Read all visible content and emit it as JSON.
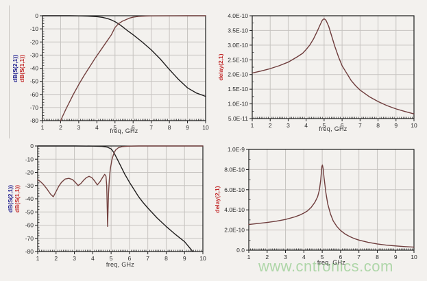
{
  "background": "#f3f1ee",
  "watermark": {
    "text": "www.cntronics.com",
    "color": "#abd5a5"
  },
  "colors": {
    "s21_trace": "#1f1d1d",
    "s11_trace": "#73413f",
    "delay_trace": "#6e3c3c",
    "grid": "#c6c3c0",
    "axis": "#1a1a1a",
    "label_blue": "#1a1a8c",
    "label_red": "#c22a2a"
  },
  "chart_data": [
    {
      "type": "line",
      "position": "top-left",
      "xlabel": "freq, GHz",
      "y_axis_titles": [
        {
          "text": "dB(S(2,1))",
          "color": "#1a1a8c"
        },
        {
          "text": "dB(S(1,1))",
          "color": "#c22a2a"
        }
      ],
      "xlim": [
        1,
        10
      ],
      "ylim": [
        -80,
        0
      ],
      "xticks": [
        [
          1,
          "1"
        ],
        [
          2,
          "2"
        ],
        [
          3,
          "3"
        ],
        [
          4,
          "4"
        ],
        [
          5,
          "5"
        ],
        [
          6,
          "6"
        ],
        [
          7,
          "7"
        ],
        [
          8,
          "8"
        ],
        [
          9,
          "9"
        ],
        [
          10,
          "10"
        ]
      ],
      "yticks": [
        [
          0,
          "0"
        ],
        [
          -10,
          "-10"
        ],
        [
          -20,
          "-20"
        ],
        [
          -30,
          "-30"
        ],
        [
          -40,
          "-40"
        ],
        [
          -50,
          "-50"
        ],
        [
          -60,
          "-60"
        ],
        [
          -70,
          "-70"
        ],
        [
          -80,
          "-80"
        ]
      ],
      "yminor": 2,
      "grid": true,
      "series": [
        {
          "name": "dB(S(2,1))",
          "color": "#1f1d1d",
          "points": [
            [
              1,
              0
            ],
            [
              1.5,
              0
            ],
            [
              2,
              0
            ],
            [
              2.5,
              0
            ],
            [
              3,
              -0.1
            ],
            [
              3.5,
              -0.3
            ],
            [
              4,
              -0.7
            ],
            [
              4.3,
              -1.2
            ],
            [
              4.6,
              -2.2
            ],
            [
              4.8,
              -3.2
            ],
            [
              5,
              -4.5
            ],
            [
              5.2,
              -6.2
            ],
            [
              5.4,
              -8.2
            ],
            [
              5.7,
              -11.5
            ],
            [
              6,
              -14.5
            ],
            [
              6.5,
              -20
            ],
            [
              7,
              -26
            ],
            [
              7.5,
              -33
            ],
            [
              8,
              -41
            ],
            [
              8.5,
              -48.5
            ],
            [
              9,
              -55
            ],
            [
              9.5,
              -59
            ],
            [
              10,
              -61.5
            ]
          ]
        },
        {
          "name": "dB(S(1,1))",
          "color": "#73413f",
          "points": [
            [
              2,
              -80
            ],
            [
              2.1,
              -77
            ],
            [
              2.3,
              -71
            ],
            [
              2.5,
              -65.5
            ],
            [
              2.7,
              -60
            ],
            [
              3,
              -52.5
            ],
            [
              3.3,
              -45.5
            ],
            [
              3.6,
              -39
            ],
            [
              3.9,
              -32.5
            ],
            [
              4.2,
              -26.5
            ],
            [
              4.5,
              -20.5
            ],
            [
              4.8,
              -14.5
            ],
            [
              5,
              -9
            ],
            [
              5.2,
              -6
            ],
            [
              5.4,
              -4.2
            ],
            [
              5.6,
              -3
            ],
            [
              5.8,
              -1.8
            ],
            [
              6,
              -1.1
            ],
            [
              6.3,
              -0.5
            ],
            [
              6.7,
              -0.2
            ],
            [
              7,
              -0.1
            ],
            [
              8,
              -0.05
            ],
            [
              9,
              0
            ],
            [
              10,
              0
            ]
          ]
        }
      ]
    },
    {
      "type": "line",
      "position": "top-right",
      "xlabel": "freq, GHz",
      "y_axis_titles": [
        {
          "text": "delay(2,1)",
          "color": "#c22a2a"
        }
      ],
      "xlim": [
        1,
        10
      ],
      "ylim": [
        5e-11,
        4e-10
      ],
      "xticks": [
        [
          1,
          "1"
        ],
        [
          2,
          "2"
        ],
        [
          3,
          "3"
        ],
        [
          4,
          "4"
        ],
        [
          5,
          "5"
        ],
        [
          6,
          "6"
        ],
        [
          7,
          "7"
        ],
        [
          8,
          "8"
        ],
        [
          9,
          "9"
        ],
        [
          10,
          "10"
        ]
      ],
      "yticks": [
        [
          4e-10,
          "4.0E-10"
        ],
        [
          3.5e-10,
          "3.5E-10"
        ],
        [
          3e-10,
          "3.0E-10"
        ],
        [
          2.5e-10,
          "2.5E-10"
        ],
        [
          2e-10,
          "2.0E-10"
        ],
        [
          1.5e-10,
          "1.5E-10"
        ],
        [
          1e-10,
          "1.0E-10"
        ],
        [
          5e-11,
          "5.0E-11"
        ]
      ],
      "yminor": 2.5e-11,
      "grid": true,
      "series": [
        {
          "name": "delay(2,1)",
          "color": "#6e3c3c",
          "points": [
            [
              1,
              2.05e-10
            ],
            [
              1.5,
              2.12e-10
            ],
            [
              2,
              2.2e-10
            ],
            [
              2.5,
              2.3e-10
            ],
            [
              3,
              2.42e-10
            ],
            [
              3.5,
              2.6e-10
            ],
            [
              3.8,
              2.72e-10
            ],
            [
              4,
              2.85e-10
            ],
            [
              4.2,
              3e-10
            ],
            [
              4.4,
              3.2e-10
            ],
            [
              4.6,
              3.45e-10
            ],
            [
              4.8,
              3.72e-10
            ],
            [
              4.9,
              3.85e-10
            ],
            [
              5,
              3.9e-10
            ],
            [
              5.1,
              3.85e-10
            ],
            [
              5.25,
              3.65e-10
            ],
            [
              5.4,
              3.35e-10
            ],
            [
              5.6,
              2.95e-10
            ],
            [
              5.8,
              2.6e-10
            ],
            [
              6,
              2.3e-10
            ],
            [
              6.25,
              2.05e-10
            ],
            [
              6.5,
              1.8e-10
            ],
            [
              6.75,
              1.62e-10
            ],
            [
              7,
              1.47e-10
            ],
            [
              7.5,
              1.25e-10
            ],
            [
              8,
              1.08e-10
            ],
            [
              8.5,
              9.4e-11
            ],
            [
              9,
              8.3e-11
            ],
            [
              9.5,
              7.4e-11
            ],
            [
              10,
              6.6e-11
            ]
          ]
        }
      ]
    },
    {
      "type": "line",
      "position": "bottom-left",
      "xlabel": "freq, GHz",
      "y_axis_titles": [
        {
          "text": "dB(S(2,1))",
          "color": "#1a1a8c"
        },
        {
          "text": "dB(S(1,1))",
          "color": "#c22a2a"
        }
      ],
      "xlim": [
        1,
        10
      ],
      "ylim": [
        -80,
        0
      ],
      "xticks": [
        [
          1,
          "1"
        ],
        [
          2,
          "2"
        ],
        [
          3,
          "3"
        ],
        [
          4,
          "4"
        ],
        [
          5,
          "5"
        ],
        [
          6,
          "6"
        ],
        [
          7,
          "7"
        ],
        [
          8,
          "8"
        ],
        [
          9,
          "9"
        ],
        [
          10,
          "10"
        ]
      ],
      "yticks": [
        [
          0,
          "0"
        ],
        [
          -10,
          "-10"
        ],
        [
          -20,
          "-20"
        ],
        [
          -30,
          "-30"
        ],
        [
          -40,
          "-40"
        ],
        [
          -50,
          "-50"
        ],
        [
          -60,
          "-60"
        ],
        [
          -70,
          "-70"
        ],
        [
          -80,
          "-80"
        ]
      ],
      "yminor": 2,
      "grid": true,
      "series": [
        {
          "name": "dB(S(2,1))",
          "color": "#1f1d1d",
          "points": [
            [
              1,
              0
            ],
            [
              2,
              0
            ],
            [
              3,
              0
            ],
            [
              4,
              -0.1
            ],
            [
              4.5,
              -0.3
            ],
            [
              4.8,
              -0.9
            ],
            [
              5,
              -2.2
            ],
            [
              5.15,
              -5
            ],
            [
              5.3,
              -9
            ],
            [
              5.5,
              -14.5
            ],
            [
              5.75,
              -21.5
            ],
            [
              6,
              -27.5
            ],
            [
              6.25,
              -33
            ],
            [
              6.5,
              -38.5
            ],
            [
              6.75,
              -43
            ],
            [
              7,
              -47
            ],
            [
              7.5,
              -54.5
            ],
            [
              8,
              -61
            ],
            [
              8.5,
              -67
            ],
            [
              9,
              -72.5
            ],
            [
              9.45,
              -80
            ]
          ]
        },
        {
          "name": "dB(S(1,1))",
          "color": "#73413f",
          "points": [
            [
              1,
              -25.5
            ],
            [
              1.15,
              -27
            ],
            [
              1.3,
              -29
            ],
            [
              1.5,
              -32.5
            ],
            [
              1.7,
              -36.5
            ],
            [
              1.85,
              -38.5
            ],
            [
              2,
              -34.5
            ],
            [
              2.15,
              -30.5
            ],
            [
              2.3,
              -27.5
            ],
            [
              2.5,
              -25
            ],
            [
              2.7,
              -24.5
            ],
            [
              2.9,
              -25.5
            ],
            [
              3.05,
              -27.5
            ],
            [
              3.2,
              -30
            ],
            [
              3.35,
              -28.5
            ],
            [
              3.5,
              -26
            ],
            [
              3.65,
              -24
            ],
            [
              3.8,
              -23
            ],
            [
              3.95,
              -24
            ],
            [
              4.1,
              -26.5
            ],
            [
              4.25,
              -29.5
            ],
            [
              4.4,
              -27
            ],
            [
              4.55,
              -23.5
            ],
            [
              4.65,
              -21.5
            ],
            [
              4.72,
              -23
            ],
            [
              4.76,
              -30
            ],
            [
              4.79,
              -48
            ],
            [
              4.81,
              -61
            ],
            [
              4.83,
              -50
            ],
            [
              4.86,
              -36
            ],
            [
              4.9,
              -26
            ],
            [
              4.95,
              -18
            ],
            [
              5.05,
              -10
            ],
            [
              5.15,
              -5.5
            ],
            [
              5.25,
              -3
            ],
            [
              5.4,
              -1.3
            ],
            [
              5.6,
              -0.5
            ],
            [
              5.9,
              -0.15
            ],
            [
              6.5,
              0
            ],
            [
              7,
              0
            ],
            [
              8,
              0
            ],
            [
              9,
              0
            ],
            [
              10,
              0
            ]
          ]
        }
      ]
    },
    {
      "type": "line",
      "position": "bottom-right",
      "xlabel": "freq, GHz",
      "y_axis_titles": [
        {
          "text": "delay(2,1)",
          "color": "#c22a2a"
        }
      ],
      "xlim": [
        1,
        10
      ],
      "ylim": [
        0,
        1e-09
      ],
      "xticks": [
        [
          1,
          "1"
        ],
        [
          2,
          "2"
        ],
        [
          3,
          "3"
        ],
        [
          4,
          "4"
        ],
        [
          5,
          "5"
        ],
        [
          6,
          "6"
        ],
        [
          7,
          "7"
        ],
        [
          8,
          "8"
        ],
        [
          9,
          "9"
        ],
        [
          10,
          "10"
        ]
      ],
      "yticks": [
        [
          1e-09,
          "1.0E-9"
        ],
        [
          8e-10,
          "8.0E-10"
        ],
        [
          6e-10,
          "6.0E-10"
        ],
        [
          4e-10,
          "4.0E-10"
        ],
        [
          2e-10,
          "2.0E-10"
        ],
        [
          0,
          "0.0"
        ]
      ],
      "yminor": 1e-10,
      "grid": true,
      "series": [
        {
          "name": "delay(2,1)",
          "color": "#6e3c3c",
          "points": [
            [
              1,
              2.55e-10
            ],
            [
              1.5,
              2.65e-10
            ],
            [
              2,
              2.75e-10
            ],
            [
              2.5,
              2.88e-10
            ],
            [
              3,
              3.05e-10
            ],
            [
              3.5,
              3.3e-10
            ],
            [
              3.8,
              3.5e-10
            ],
            [
              4,
              3.68e-10
            ],
            [
              4.2,
              3.9e-10
            ],
            [
              4.4,
              4.25e-10
            ],
            [
              4.6,
              4.75e-10
            ],
            [
              4.75,
              5.3e-10
            ],
            [
              4.85,
              6e-10
            ],
            [
              4.92,
              7e-10
            ],
            [
              4.98,
              8.3e-10
            ],
            [
              5.01,
              8.45e-10
            ],
            [
              5.05,
              8.1e-10
            ],
            [
              5.1,
              7.2e-10
            ],
            [
              5.2,
              5.7e-10
            ],
            [
              5.3,
              4.6e-10
            ],
            [
              5.45,
              3.6e-10
            ],
            [
              5.6,
              2.9e-10
            ],
            [
              5.8,
              2.35e-10
            ],
            [
              6,
              1.95e-10
            ],
            [
              6.25,
              1.6e-10
            ],
            [
              6.5,
              1.35e-10
            ],
            [
              6.75,
              1.15e-10
            ],
            [
              7,
              1e-10
            ],
            [
              7.5,
              7.8e-11
            ],
            [
              8,
              6.2e-11
            ],
            [
              8.5,
              5e-11
            ],
            [
              9,
              4.2e-11
            ],
            [
              9.5,
              3.5e-11
            ],
            [
              10,
              3e-11
            ]
          ]
        }
      ]
    }
  ]
}
